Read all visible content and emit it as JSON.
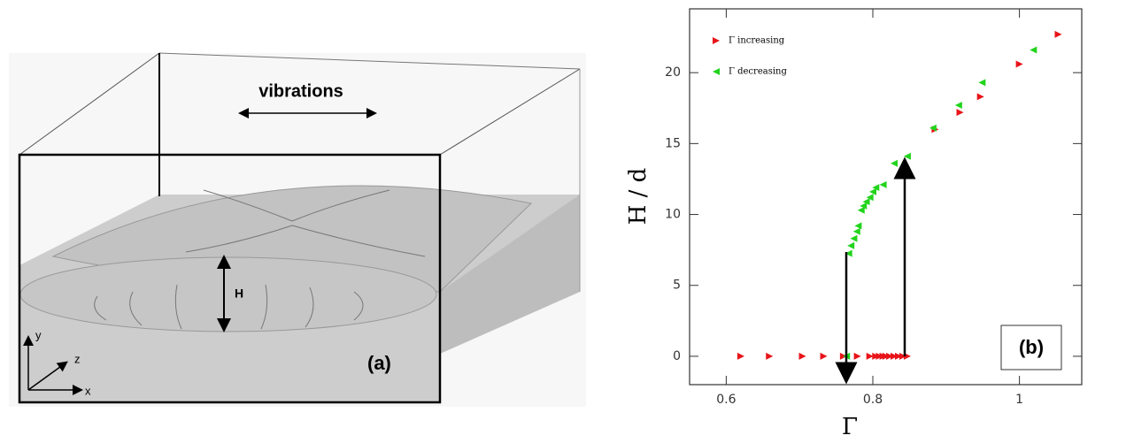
{
  "panel_a": {
    "arrow_label": "vibrations",
    "height_label": "H",
    "panel_label": "(a)",
    "axis_labels": [
      "y",
      "z",
      "x"
    ]
  },
  "chart_data": {
    "type": "scatter",
    "xlabel": "Γ",
    "ylabel": "H / d",
    "panel_label": "(b)",
    "xlim": [
      0.55,
      1.085
    ],
    "ylim": [
      -2,
      24.5
    ],
    "xticks": [
      0.6,
      0.8,
      1
    ],
    "yticks": [
      0,
      5,
      10,
      15,
      20
    ],
    "legend": "top-left",
    "series": [
      {
        "name": "Γ increasing",
        "color": "#e8141a",
        "marker": "right-triangle",
        "x": [
          0.62,
          0.659,
          0.704,
          0.733,
          0.76,
          0.779,
          0.796,
          0.804,
          0.809,
          0.814,
          0.818,
          0.823,
          0.829,
          0.835,
          0.841,
          0.847,
          0.885,
          0.919,
          0.947,
          1.0,
          1.053
        ],
        "values": [
          0,
          0,
          0,
          0,
          0,
          0,
          0,
          0,
          0,
          0,
          0,
          0,
          0,
          0,
          0,
          0,
          16.0,
          17.2,
          18.3,
          20.6,
          22.7
        ]
      },
      {
        "name": "Γ decreasing",
        "color": "#22d41c",
        "marker": "left-triangle",
        "x": [
          0.764,
          0.767,
          0.77,
          0.774,
          0.778,
          0.78,
          0.784,
          0.787,
          0.791,
          0.796,
          0.8,
          0.804,
          0.814,
          0.829,
          0.847,
          0.882,
          0.917,
          0.949,
          1.019
        ],
        "values": [
          0,
          7.25,
          7.8,
          8.3,
          8.8,
          9.2,
          10.3,
          10.6,
          10.9,
          11.2,
          11.6,
          11.9,
          12.1,
          13.6,
          14.1,
          16.1,
          17.7,
          19.3,
          21.6
        ]
      }
    ]
  }
}
